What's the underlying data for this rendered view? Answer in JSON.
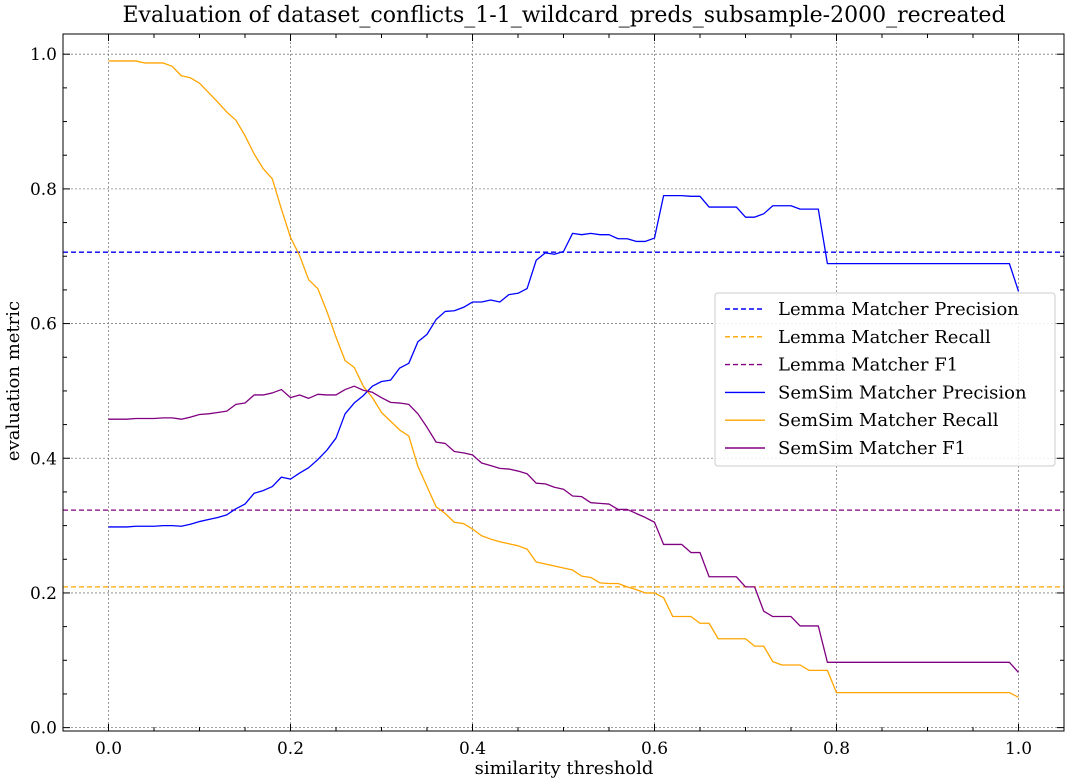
{
  "chart_data": {
    "type": "line",
    "title": "Evaluation of dataset_conflicts_1-1_wildcard_preds_subsample-2000_recreated",
    "xlabel": "similarity threshold",
    "ylabel": "evaluation metric",
    "xlim": [
      -0.05,
      1.05
    ],
    "ylim": [
      -0.005,
      1.03
    ],
    "xticks": [
      0.0,
      0.2,
      0.4,
      0.6,
      0.8,
      1.0
    ],
    "yticks": [
      0.0,
      0.2,
      0.4,
      0.6,
      0.8,
      1.0
    ],
    "xtick_labels": [
      "0.0",
      "0.2",
      "0.4",
      "0.6",
      "0.8",
      "1.0"
    ],
    "ytick_labels": [
      "0.0",
      "0.2",
      "0.4",
      "0.6",
      "0.8",
      "1.0"
    ],
    "grid": true,
    "legend_position": "center-right",
    "x": [
      0.0,
      0.01,
      0.02,
      0.03,
      0.04,
      0.05,
      0.06,
      0.07,
      0.08,
      0.09,
      0.1,
      0.11,
      0.12,
      0.13,
      0.14,
      0.15,
      0.16,
      0.17,
      0.18,
      0.19,
      0.2,
      0.21,
      0.22,
      0.23,
      0.24,
      0.25,
      0.26,
      0.27,
      0.28,
      0.29,
      0.3,
      0.31,
      0.32,
      0.33,
      0.34,
      0.35,
      0.36,
      0.37,
      0.38,
      0.39,
      0.4,
      0.41,
      0.42,
      0.43,
      0.44,
      0.45,
      0.46,
      0.47,
      0.48,
      0.49,
      0.5,
      0.51,
      0.52,
      0.53,
      0.54,
      0.55,
      0.56,
      0.57,
      0.58,
      0.59,
      0.6,
      0.61,
      0.62,
      0.63,
      0.64,
      0.65,
      0.66,
      0.67,
      0.68,
      0.69,
      0.7,
      0.71,
      0.72,
      0.73,
      0.74,
      0.75,
      0.76,
      0.77,
      0.78,
      0.79,
      0.8,
      0.81,
      0.82,
      0.83,
      0.84,
      0.85,
      0.86,
      0.87,
      0.88,
      0.89,
      0.9,
      0.91,
      0.92,
      0.93,
      0.94,
      0.95,
      0.96,
      0.97,
      0.98,
      0.99,
      1.0
    ],
    "series": [
      {
        "name": "Lemma Matcher Precision",
        "style": "dashed",
        "color": "#0000ff",
        "constant": 0.706
      },
      {
        "name": "Lemma Matcher Recall",
        "style": "dashed",
        "color": "#ffa500",
        "constant": 0.209
      },
      {
        "name": "Lemma Matcher F1",
        "style": "dashed",
        "color": "#800080",
        "constant": 0.323
      },
      {
        "name": "SemSim Matcher Precision",
        "style": "solid",
        "color": "#0000ff",
        "values": [
          0.298,
          0.298,
          0.298,
          0.299,
          0.299,
          0.299,
          0.3,
          0.3,
          0.299,
          0.302,
          0.306,
          0.309,
          0.312,
          0.316,
          0.325,
          0.332,
          0.348,
          0.352,
          0.358,
          0.372,
          0.369,
          0.378,
          0.386,
          0.398,
          0.412,
          0.43,
          0.466,
          0.482,
          0.493,
          0.507,
          0.514,
          0.516,
          0.534,
          0.541,
          0.573,
          0.584,
          0.606,
          0.618,
          0.619,
          0.624,
          0.632,
          0.632,
          0.635,
          0.632,
          0.643,
          0.645,
          0.652,
          0.694,
          0.705,
          0.703,
          0.707,
          0.734,
          0.732,
          0.734,
          0.732,
          0.732,
          0.726,
          0.726,
          0.722,
          0.722,
          0.727,
          0.79,
          0.79,
          0.79,
          0.789,
          0.789,
          0.773,
          0.773,
          0.773,
          0.773,
          0.758,
          0.758,
          0.763,
          0.775,
          0.775,
          0.775,
          0.77,
          0.77,
          0.77,
          0.689,
          0.689,
          0.689,
          0.689,
          0.689,
          0.689,
          0.689,
          0.689,
          0.689,
          0.689,
          0.689,
          0.689,
          0.689,
          0.689,
          0.689,
          0.689,
          0.689,
          0.689,
          0.689,
          0.689,
          0.689,
          0.648
        ]
      },
      {
        "name": "SemSim Matcher Recall",
        "style": "solid",
        "color": "#ffa500",
        "values": [
          0.99,
          0.99,
          0.99,
          0.99,
          0.987,
          0.987,
          0.987,
          0.982,
          0.968,
          0.965,
          0.957,
          0.943,
          0.929,
          0.914,
          0.902,
          0.879,
          0.852,
          0.83,
          0.815,
          0.77,
          0.728,
          0.701,
          0.665,
          0.652,
          0.618,
          0.58,
          0.545,
          0.535,
          0.507,
          0.49,
          0.468,
          0.455,
          0.442,
          0.433,
          0.388,
          0.358,
          0.328,
          0.318,
          0.305,
          0.303,
          0.295,
          0.285,
          0.28,
          0.276,
          0.273,
          0.27,
          0.265,
          0.246,
          0.243,
          0.24,
          0.237,
          0.234,
          0.225,
          0.223,
          0.215,
          0.214,
          0.214,
          0.209,
          0.205,
          0.2,
          0.2,
          0.193,
          0.165,
          0.165,
          0.165,
          0.155,
          0.155,
          0.132,
          0.132,
          0.132,
          0.132,
          0.121,
          0.121,
          0.098,
          0.093,
          0.093,
          0.093,
          0.085,
          0.085,
          0.085,
          0.052,
          0.052,
          0.052,
          0.052,
          0.052,
          0.052,
          0.052,
          0.052,
          0.052,
          0.052,
          0.052,
          0.052,
          0.052,
          0.052,
          0.052,
          0.052,
          0.052,
          0.052,
          0.052,
          0.052,
          0.045
        ]
      },
      {
        "name": "SemSim Matcher F1",
        "style": "solid",
        "color": "#800080",
        "values": [
          0.458,
          0.458,
          0.458,
          0.459,
          0.459,
          0.459,
          0.46,
          0.46,
          0.458,
          0.461,
          0.465,
          0.466,
          0.468,
          0.47,
          0.48,
          0.482,
          0.494,
          0.494,
          0.497,
          0.502,
          0.49,
          0.494,
          0.489,
          0.495,
          0.494,
          0.494,
          0.502,
          0.507,
          0.501,
          0.498,
          0.49,
          0.483,
          0.482,
          0.48,
          0.466,
          0.446,
          0.424,
          0.422,
          0.41,
          0.408,
          0.405,
          0.393,
          0.389,
          0.385,
          0.384,
          0.381,
          0.377,
          0.363,
          0.362,
          0.357,
          0.354,
          0.344,
          0.343,
          0.334,
          0.333,
          0.332,
          0.324,
          0.324,
          0.318,
          0.312,
          0.305,
          0.272,
          0.272,
          0.272,
          0.26,
          0.26,
          0.224,
          0.224,
          0.224,
          0.224,
          0.209,
          0.209,
          0.173,
          0.165,
          0.165,
          0.165,
          0.151,
          0.151,
          0.151,
          0.097,
          0.097,
          0.097,
          0.097,
          0.097,
          0.097,
          0.097,
          0.097,
          0.097,
          0.097,
          0.097,
          0.097,
          0.097,
          0.097,
          0.097,
          0.097,
          0.097,
          0.097,
          0.097,
          0.097,
          0.097,
          0.082
        ]
      }
    ]
  }
}
